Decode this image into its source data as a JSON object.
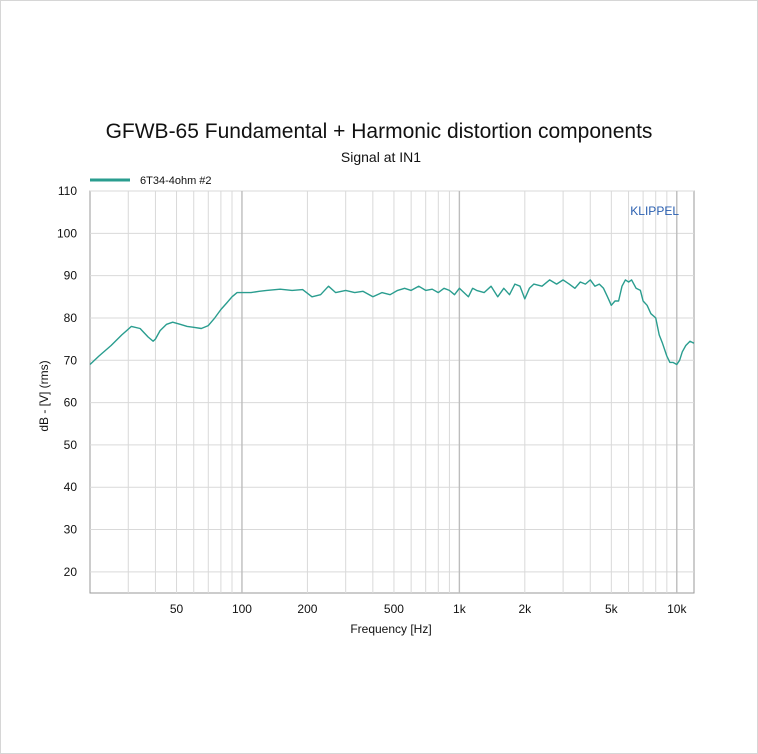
{
  "chart_data": {
    "type": "line",
    "title": "GFWB-65 Fundamental + Harmonic distortion components",
    "subtitle": "Signal at IN1",
    "watermark": "KLIPPEL",
    "xlabel": "Frequency [Hz]",
    "ylabel": "dB - [V] (rms)",
    "x_scale": "log",
    "xlim": [
      20,
      12000
    ],
    "ylim": [
      15,
      110
    ],
    "x_ticks": [
      {
        "value": 50,
        "label": "50"
      },
      {
        "value": 100,
        "label": "100"
      },
      {
        "value": 200,
        "label": "200"
      },
      {
        "value": 500,
        "label": "500"
      },
      {
        "value": 1000,
        "label": "1k"
      },
      {
        "value": 2000,
        "label": "2k"
      },
      {
        "value": 5000,
        "label": "5k"
      },
      {
        "value": 10000,
        "label": "10k"
      }
    ],
    "y_ticks": [
      20,
      30,
      40,
      50,
      60,
      70,
      80,
      90,
      100,
      110
    ],
    "grid": true,
    "legend_position": "top-left",
    "colors": {
      "series": "#2a9d8f",
      "grid": "#d9d9d9",
      "axis": "#9a9a9a",
      "watermark": "#2a5fb0"
    },
    "series": [
      {
        "name": "6T34-4ohm #2",
        "x": [
          20,
          22,
          25,
          28,
          31,
          34,
          37,
          39,
          40,
          42,
          45,
          48,
          52,
          56,
          60,
          65,
          70,
          75,
          80,
          85,
          90,
          95,
          100,
          110,
          120,
          130,
          150,
          170,
          190,
          210,
          230,
          250,
          270,
          300,
          330,
          360,
          400,
          440,
          480,
          520,
          560,
          600,
          650,
          700,
          750,
          800,
          850,
          900,
          950,
          1000,
          1050,
          1100,
          1150,
          1200,
          1300,
          1400,
          1500,
          1600,
          1700,
          1800,
          1900,
          2000,
          2100,
          2200,
          2400,
          2600,
          2800,
          3000,
          3200,
          3400,
          3600,
          3800,
          4000,
          4200,
          4400,
          4600,
          4800,
          5000,
          5200,
          5400,
          5600,
          5800,
          6000,
          6200,
          6500,
          6800,
          7000,
          7300,
          7600,
          8000,
          8300,
          8600,
          9000,
          9300,
          9600,
          10000,
          10300,
          10600,
          11000,
          11500,
          12000
        ],
        "y": [
          69,
          71,
          73.5,
          76,
          78,
          77.5,
          75.5,
          74.5,
          75,
          77,
          78.5,
          79,
          78.5,
          78,
          77.8,
          77.5,
          78.2,
          80,
          82,
          83.5,
          85,
          86,
          86,
          86,
          86.3,
          86.5,
          86.8,
          86.5,
          86.7,
          85,
          85.5,
          87.5,
          86,
          86.5,
          86,
          86.3,
          85,
          86,
          85.5,
          86.5,
          87,
          86.5,
          87.5,
          86.5,
          86.8,
          86,
          87,
          86.5,
          85.5,
          87,
          86,
          85,
          87,
          86.5,
          86,
          87.5,
          85,
          87,
          85.5,
          88,
          87.5,
          84.5,
          87,
          88,
          87.5,
          89,
          88,
          89,
          88,
          87,
          88.5,
          88,
          89,
          87.5,
          88,
          87,
          85,
          83,
          84,
          84,
          87.5,
          89,
          88.5,
          89,
          87,
          86.5,
          84,
          83,
          81,
          80,
          76,
          74,
          71,
          69.5,
          69.5,
          69,
          70,
          72,
          73.5,
          74.5,
          74
        ]
      }
    ]
  }
}
